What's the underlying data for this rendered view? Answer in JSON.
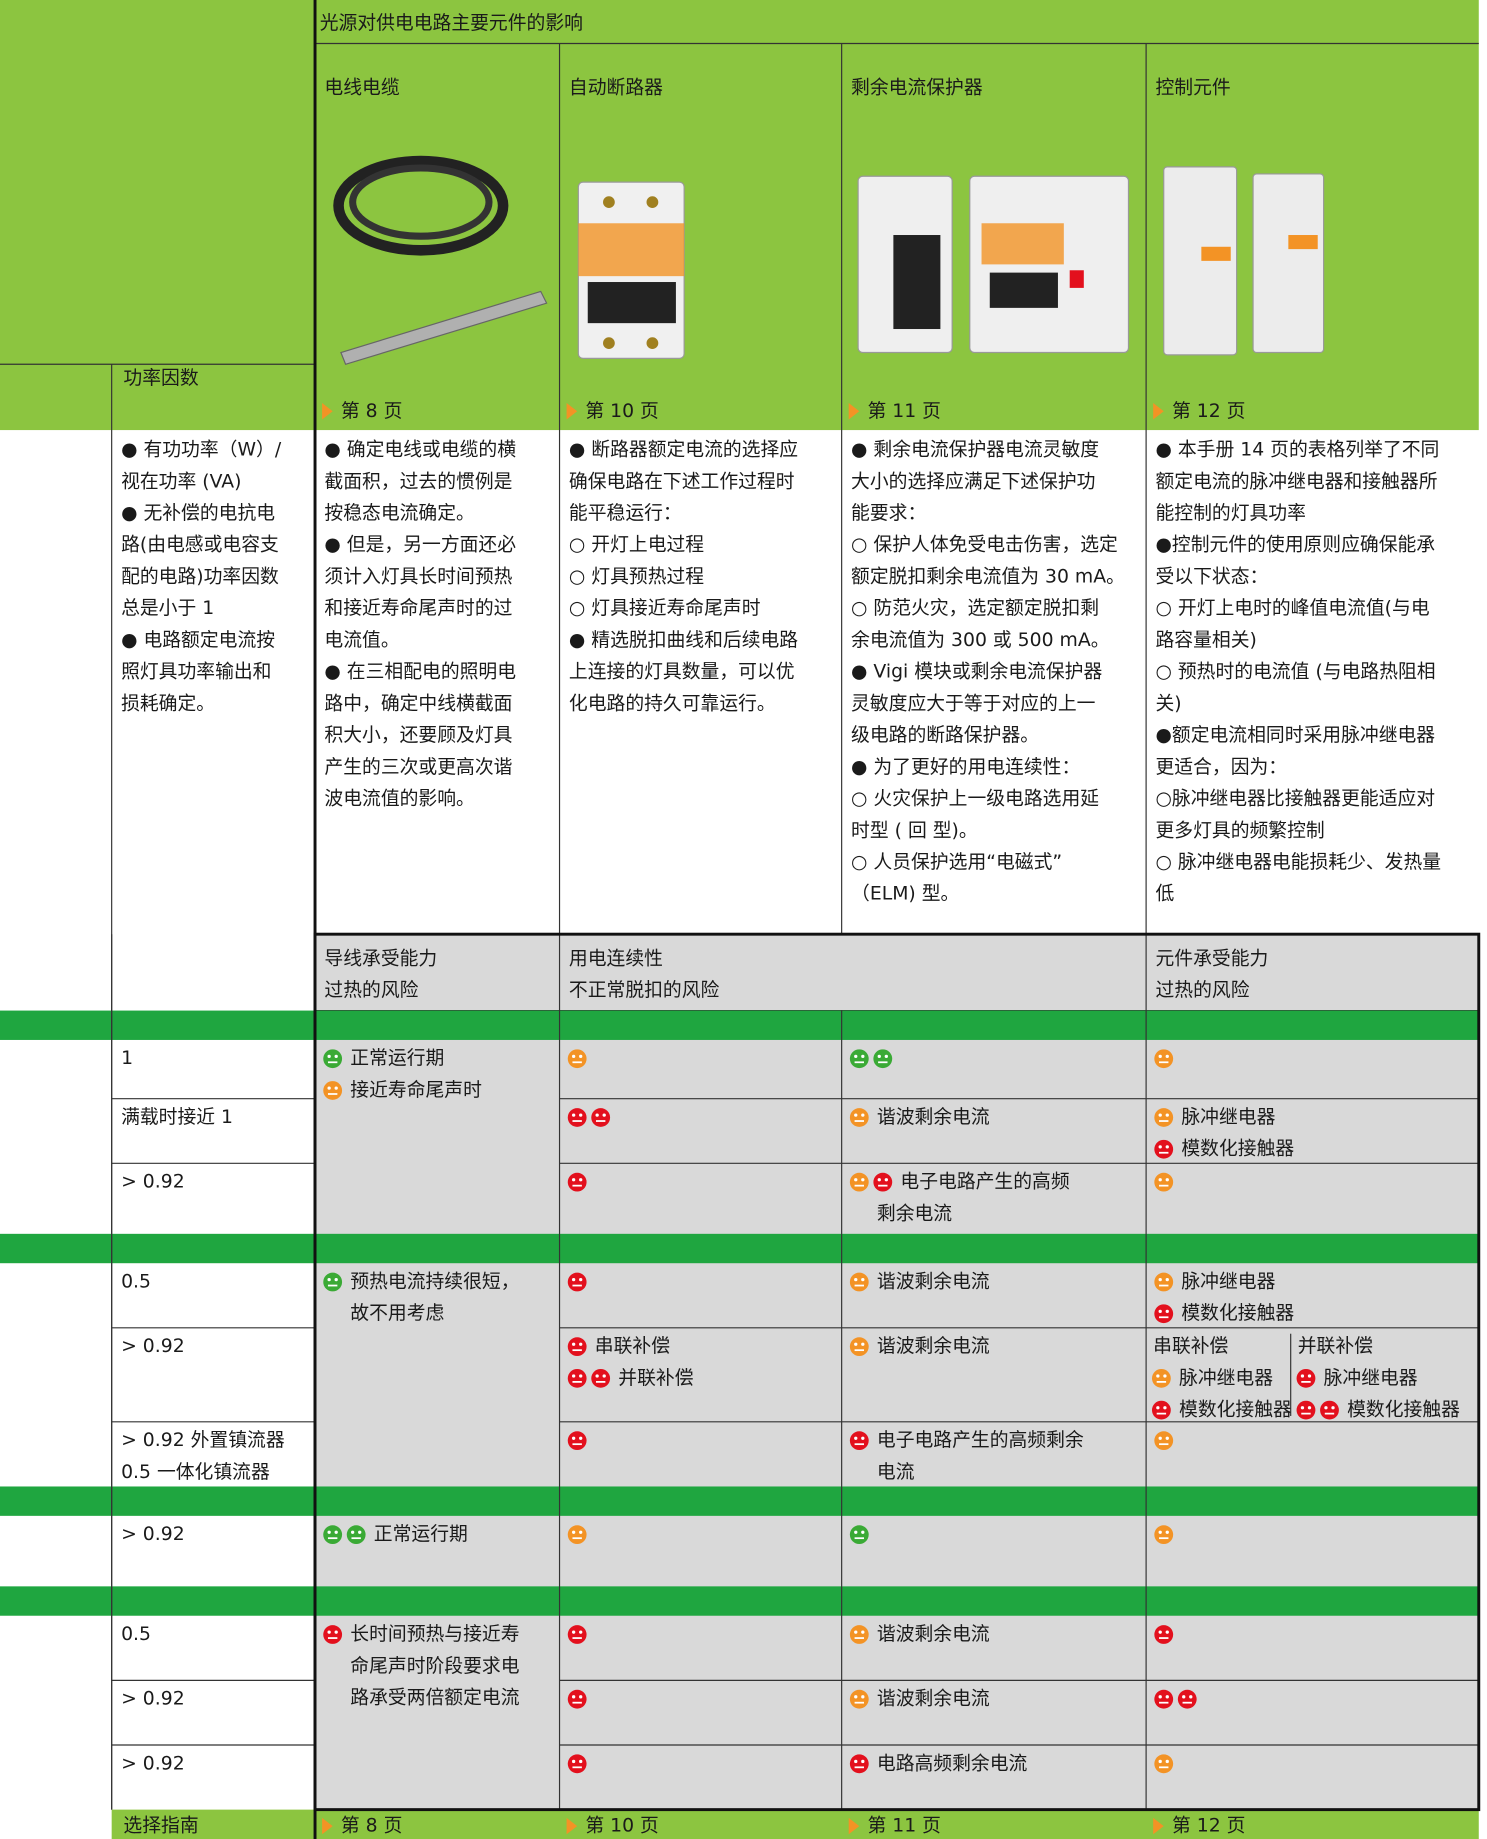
{
  "header": {
    "title": "光源对供电电路主要元件的影响",
    "power_factor_label": "功率因数"
  },
  "columns": [
    {
      "title": "电线电缆",
      "page": "第 8 页"
    },
    {
      "title": "自动断路器",
      "page": "第 10 页"
    },
    {
      "title": "剩余电流保护器",
      "page": "第 11 页"
    },
    {
      "title": "控制元件",
      "page": "第 12 页"
    }
  ],
  "description_columns": [
    [
      "● 有功功率（W）/",
      "视在功率 (VA)",
      "● 无补偿的电抗电",
      "路(由电感或电容支",
      "配的电路)功率因数",
      "总是小于 1",
      "● 电路额定电流按",
      "照灯具功率输出和",
      "损耗确定。"
    ],
    [
      "● 确定电线或电缆的横",
      "截面积，过去的惯例是",
      "按稳态电流确定。",
      "● 但是，另一方面还必",
      "须计入灯具长时间预热",
      "和接近寿命尾声时的过",
      "电流值。",
      "● 在三相配电的照明电",
      "路中，确定中线横截面",
      "积大小，还要顾及灯具",
      "产生的三次或更高次谐",
      "波电流值的影响。"
    ],
    [
      "● 断路器额定电流的选择应",
      "确保电路在下述工作过程时",
      "能平稳运行：",
      "○ 开灯上电过程",
      "○ 灯具预热过程",
      "○ 灯具接近寿命尾声时",
      "● 精选脱扣曲线和后续电路",
      "上连接的灯具数量，可以优",
      "化电路的持久可靠运行。"
    ],
    [
      "● 剩余电流保护器电流灵敏度",
      "大小的选择应满足下述保护功",
      "能要求：",
      "○ 保护人体免受电击伤害，选定",
      "额定脱扣剩余电流值为 30 mA。",
      "○ 防范火灾，选定额定脱扣剩",
      "余电流值为 300 或 500 mA。",
      "● Vigi 模块或剩余电流保护器",
      "灵敏度应大于等于对应的上一",
      "级电路的断路保护器。",
      "● 为了更好的用电连续性：",
      "○ 火灾保护上一级电路选用延",
      "时型 ( 回 型)。",
      "○ 人员保护选用“电磁式”",
      "（ELM) 型。"
    ],
    [
      "● 本手册 14 页的表格列举了不同",
      "额定电流的脉冲继电器和接触器所",
      "能控制的灯具功率",
      "●控制元件的使用原则应确保能承",
      "受以下状态：",
      "○ 开灯上电时的峰值电流值(与电",
      "路容量相关)",
      "○ 预热时的电流值 (与电路热阻相",
      "关)",
      "●额定电流相同时采用脉冲继电器",
      "更适合，因为：",
      "○脉冲继电器比接触器更能适应对",
      "更多灯具的频繁控制",
      "○ 脉冲继电器电能损耗少、发热量",
      "低"
    ]
  ],
  "risk_headers": [
    [
      "导线承受能力",
      "过热的风险"
    ],
    [
      "用电连续性",
      "不正常脱扣的风险"
    ],
    [
      "元件承受能力",
      "过热的风险"
    ]
  ],
  "groups": [
    {
      "rows": [
        {
          "pf": [
            "1"
          ],
          "wire": [
            {
              "icons": [
                "#3aaa35"
              ],
              "text": "正常运行期"
            },
            {
              "icons": [
                "#f39325"
              ],
              "text": "接近寿命尾声时"
            }
          ],
          "breaker": [
            {
              "icons": [
                "#f39325"
              ]
            }
          ],
          "rcd": [
            {
              "icons": [
                "#3aaa35",
                "#3aaa35"
              ]
            }
          ],
          "control": [
            {
              "icons": [
                "#f39325"
              ]
            }
          ]
        },
        {
          "pf": [
            "满载时接近 1"
          ],
          "breaker": [
            {
              "icons": [
                "#e3101d",
                "#e3101d"
              ]
            }
          ],
          "rcd": [
            {
              "icons": [
                "#f39325"
              ],
              "text": "谐波剩余电流"
            }
          ],
          "control": [
            {
              "icons": [
                "#f39325"
              ],
              "text": "脉冲继电器"
            },
            {
              "icons": [
                "#e3101d"
              ],
              "text": "模数化接触器"
            }
          ]
        },
        {
          "pf": [
            "> 0.92"
          ],
          "breaker": [
            {
              "icons": [
                "#e3101d"
              ]
            }
          ],
          "rcd": [
            {
              "icons": [
                "#f39325",
                "#e3101d"
              ],
              "text": "电子电路产生的高频"
            },
            {
              "text": "剩余电流"
            }
          ],
          "control": [
            {
              "icons": [
                "#f39325"
              ]
            }
          ]
        }
      ]
    },
    {
      "rows": [
        {
          "pf": [
            "0.5"
          ],
          "wire": [
            {
              "icons": [
                "#3aaa35"
              ],
              "text": "预热电流持续很短，"
            },
            {
              "text": "故不用考虑"
            }
          ],
          "breaker": [
            {
              "icons": [
                "#e3101d"
              ]
            }
          ],
          "rcd": [
            {
              "icons": [
                "#f39325"
              ],
              "text": "谐波剩余电流"
            }
          ],
          "control": [
            {
              "icons": [
                "#f39325"
              ],
              "text": "脉冲继电器"
            },
            {
              "icons": [
                "#e3101d"
              ],
              "text": "模数化接触器"
            }
          ]
        },
        {
          "pf": [
            "> 0.92"
          ],
          "breaker": [
            {
              "icons": [
                "#e3101d"
              ],
              "text": "串联补偿"
            },
            {
              "icons": [
                "#e3101d",
                "#e3101d"
              ],
              "text": "并联补偿"
            }
          ],
          "rcd": [
            {
              "icons": [
                "#f39325"
              ],
              "text": "谐波剩余电流"
            }
          ],
          "control_split": [
            {
              "title": "串联补偿",
              "items": [
                {
                  "icons": [
                    "#f39325"
                  ],
                  "text": "脉冲继电器"
                },
                {
                  "icons": [
                    "#e3101d"
                  ],
                  "text": "模数化接触器"
                }
              ]
            },
            {
              "title": "并联补偿",
              "items": [
                {
                  "icons": [
                    "#e3101d"
                  ],
                  "text": "脉冲继电器"
                },
                {
                  "icons": [
                    "#e3101d",
                    "#e3101d"
                  ],
                  "text": "模数化接触器"
                }
              ]
            }
          ]
        },
        {
          "pf": [
            "> 0.92 外置镇流器",
            "0.5 一体化镇流器"
          ],
          "breaker": [
            {
              "icons": [
                "#e3101d"
              ]
            }
          ],
          "rcd": [
            {
              "icons": [
                "#e3101d"
              ],
              "text": "电子电路产生的高频剩余"
            },
            {
              "text": "电流"
            }
          ],
          "control": [
            {
              "icons": [
                "#f39325"
              ]
            }
          ]
        }
      ]
    },
    {
      "rows": [
        {
          "pf": [
            "> 0.92"
          ],
          "wire": [
            {
              "icons": [
                "#3aaa35",
                "#3aaa35"
              ],
              "text": "正常运行期"
            }
          ],
          "breaker": [
            {
              "icons": [
                "#f39325"
              ]
            }
          ],
          "rcd": [
            {
              "icons": [
                "#3aaa35"
              ]
            }
          ],
          "control": [
            {
              "icons": [
                "#f39325"
              ]
            }
          ]
        }
      ]
    },
    {
      "rows": [
        {
          "pf": [
            "0.5"
          ],
          "wire": [
            {
              "icons": [
                "#e3101d"
              ],
              "text": "长时间预热与接近寿"
            },
            {
              "text": "命尾声时阶段要求电"
            },
            {
              "text": "路承受两倍额定电流"
            }
          ],
          "breaker": [
            {
              "icons": [
                "#e3101d"
              ]
            }
          ],
          "rcd": [
            {
              "icons": [
                "#f39325"
              ],
              "text": "谐波剩余电流"
            }
          ],
          "control": [
            {
              "icons": [
                "#e3101d"
              ]
            }
          ]
        },
        {
          "pf": [
            "> 0.92"
          ],
          "breaker": [
            {
              "icons": [
                "#e3101d"
              ]
            }
          ],
          "rcd": [
            {
              "icons": [
                "#f39325"
              ],
              "text": "谐波剩余电流"
            }
          ],
          "control": [
            {
              "icons": [
                "#e3101d",
                "#e3101d"
              ]
            }
          ]
        },
        {
          "pf": [
            "> 0.92"
          ],
          "breaker": [
            {
              "icons": [
                "#e3101d"
              ]
            }
          ],
          "rcd": [
            {
              "icons": [
                "#e3101d"
              ],
              "text": "电路高频剩余电流"
            }
          ],
          "control": [
            {
              "icons": [
                "#f39325"
              ]
            }
          ]
        }
      ]
    }
  ],
  "footer": {
    "label": "选择指南"
  }
}
